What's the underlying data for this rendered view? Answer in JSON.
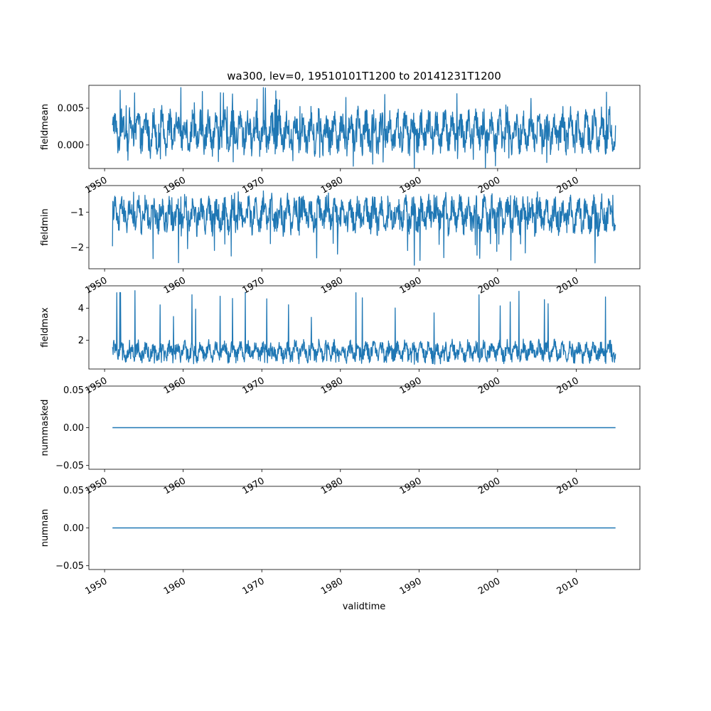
{
  "chart_data": {
    "type": "line",
    "title": "wa300, lev=0, 19510101T1200 to 20141231T1200",
    "xlabel": "validtime",
    "x_range": [
      "1951-01-01",
      "2014-12-31"
    ],
    "xlim": [
      1948.0,
      2018.1
    ],
    "x_tick_labels": [
      "1950",
      "1960",
      "1970",
      "1980",
      "1990",
      "2000",
      "2010"
    ],
    "line_color": "#1f77b4",
    "grid": false,
    "panels": [
      {
        "ylabel": "fieldmean",
        "ylim": [
          -0.0032,
          0.0081
        ],
        "y_tick_labels": [
          "0.000",
          "0.005"
        ],
        "y_tick_values": [
          0.0,
          0.005
        ],
        "series": [
          {
            "values_summary": {
              "typical_low": -0.0008,
              "typical_high": 0.0045,
              "min": -0.0031,
              "max": 0.0078
            }
          }
        ]
      },
      {
        "ylabel": "fieldmin",
        "ylim": [
          -2.6,
          -0.25
        ],
        "y_tick_labels": [
          "−2",
          "−1"
        ],
        "y_tick_values": [
          -2,
          -1
        ],
        "series": [
          {
            "values_summary": {
              "typical_low": -1.55,
              "typical_high": -0.6,
              "min": -2.5,
              "max": -0.4
            }
          }
        ]
      },
      {
        "ylabel": "fieldmax",
        "ylim": [
          0.2,
          5.4
        ],
        "y_tick_labels": [
          "2",
          "4"
        ],
        "y_tick_values": [
          2,
          4
        ],
        "series": [
          {
            "values_summary": {
              "typical_low": 0.7,
              "typical_high": 1.9,
              "min": 0.5,
              "max": 5.1
            }
          }
        ]
      },
      {
        "ylabel": "nummasked",
        "ylim": [
          -0.055,
          0.055
        ],
        "y_tick_labels": [
          "−0.05",
          "0.00",
          "0.05"
        ],
        "y_tick_values": [
          -0.05,
          0.0,
          0.05
        ],
        "series": [
          {
            "values": [
              0,
              0
            ],
            "x": [
              "1951-01-01",
              "2014-12-31"
            ]
          }
        ]
      },
      {
        "ylabel": "numnan",
        "ylim": [
          -0.055,
          0.055
        ],
        "y_tick_labels": [
          "−0.05",
          "0.00",
          "0.05"
        ],
        "y_tick_values": [
          -0.05,
          0.0,
          0.05
        ],
        "series": [
          {
            "values": [
              0,
              0
            ],
            "x": [
              "1951-01-01",
              "2014-12-31"
            ]
          }
        ]
      }
    ]
  }
}
